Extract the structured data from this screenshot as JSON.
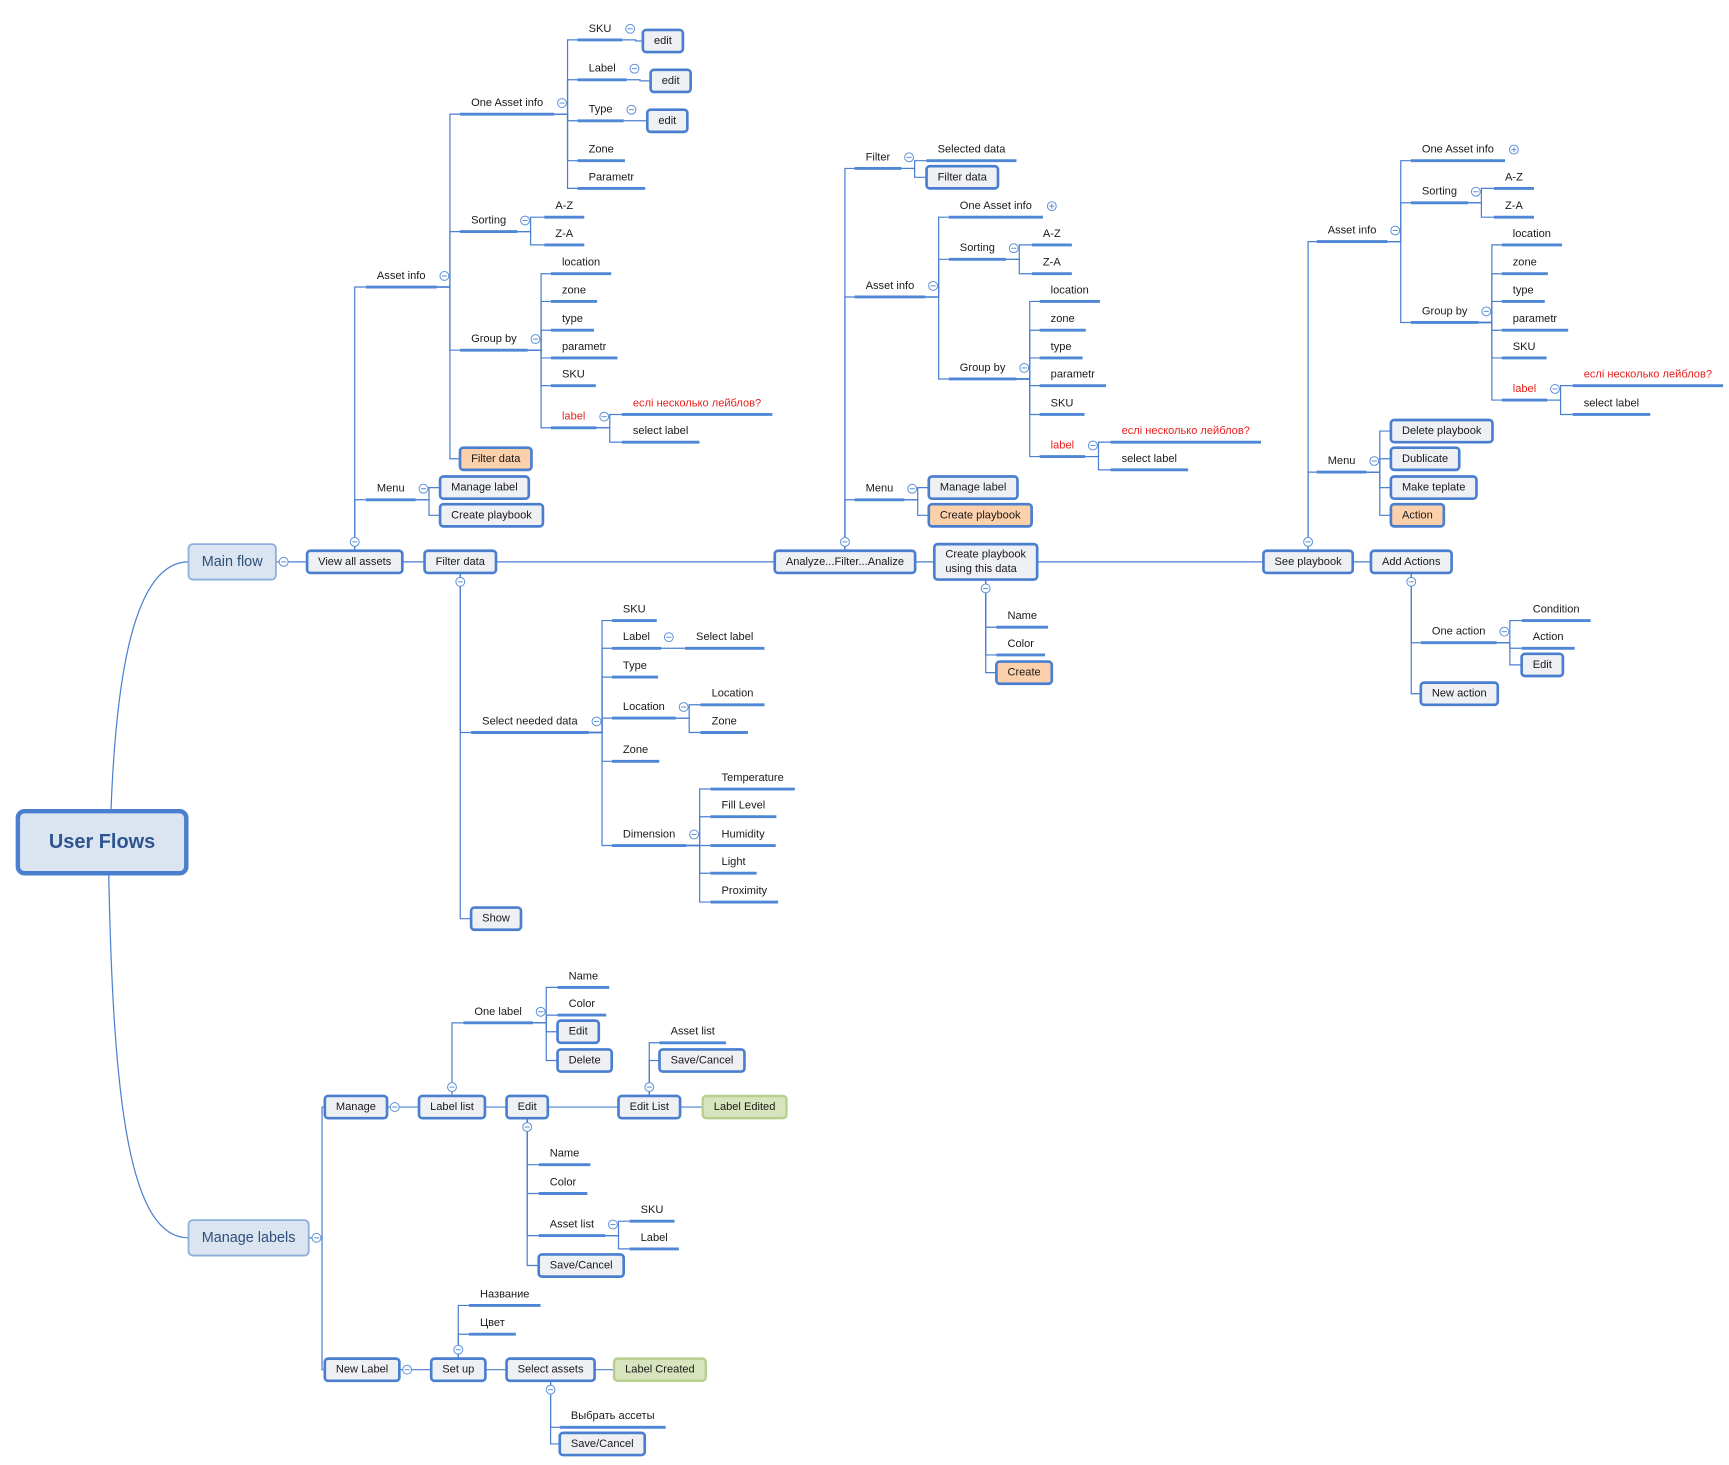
{
  "title": "User Flows",
  "colors": {
    "line": "#4a7fd0",
    "box_fill": "#eef0f3",
    "highlight_orange": "#fcd0aa",
    "done_green": "#d7e4bd",
    "main_fill": "#dbe5f1",
    "warning_text": "#e8201e"
  },
  "nodes": {
    "root": "User Flows",
    "main_flow": "Main flow",
    "manage_labels": "Manage labels",
    "view_all": "View all assets",
    "filter_data": "Filter data",
    "analyze": "Analyze...Filter...Analize",
    "create_pb_data": [
      "Create playbook",
      "using this data"
    ],
    "see_pb": "See playbook",
    "add_actions": "Add Actions",
    "a1_asset_info": "Asset info",
    "a1_menu": "Menu",
    "a1_one_asset": "One Asset info",
    "a1_sorting": "Sorting",
    "a1_group": "Group by",
    "a1_filter": "Filter data",
    "a1_sku": "SKU",
    "a1_label": "Label",
    "a1_type": "Type",
    "a1_zone": "Zone",
    "a1_param": "Parametr",
    "a1_sku_edit": "edit",
    "a1_label_edit": "edit",
    "a1_type_edit": "edit",
    "a1_az": "A-Z",
    "a1_za": "Z-A",
    "a1_g_location": "location",
    "a1_g_zone": "zone",
    "a1_g_type": "type",
    "a1_g_param": "parametr",
    "a1_g_sku": "SKU",
    "a1_g_label": "label",
    "a1_g_q": "еслі несколько лейблов?",
    "a1_g_select": "select label",
    "a1_manage_label": "Manage label",
    "a1_create_pb": "Create playbook",
    "f_select": "Select needed data",
    "f_show": "Show",
    "f_sku": "SKU",
    "f_label": "Label",
    "f_type": "Type",
    "f_location": "Location",
    "f_zone": "Zone",
    "f_dimension": "Dimension",
    "f_select_label": "Select label",
    "f_loc_location": "Location",
    "f_loc_zone": "Zone",
    "f_temp": "Temperature",
    "f_fill": "Fill Level",
    "f_hum": "Humidity",
    "f_light": "Light",
    "f_prox": "Proximity",
    "b_filter": "Filter",
    "b_asset_info": "Asset info",
    "b_menu": "Menu",
    "b_selected": "Selected data",
    "b_filter_data": "Filter data",
    "b_one_asset": "One Asset info",
    "b_sorting": "Sorting",
    "b_group": "Group by",
    "b_az": "A-Z",
    "b_za": "Z-A",
    "b_g_location": "location",
    "b_g_zone": "zone",
    "b_g_type": "type",
    "b_g_param": "parametr",
    "b_g_sku": "SKU",
    "b_g_label": "label",
    "b_g_q": "еслі несколько лейблов?",
    "b_g_select": "select label",
    "b_manage_label": "Manage label",
    "b_create_pb": "Create playbook",
    "c_name": "Name",
    "c_color": "Color",
    "c_create": "Create",
    "s_asset_info": "Asset info",
    "s_menu": "Menu",
    "s_one_asset": "One Asset info",
    "s_sorting": "Sorting",
    "s_group": "Group by",
    "s_az": "A-Z",
    "s_za": "Z-A",
    "s_g_location": "location",
    "s_g_zone": "zone",
    "s_g_type": "type",
    "s_g_param": "parametr",
    "s_g_sku": "SKU",
    "s_g_label": "label",
    "s_g_q": "еслі несколько лейблов?",
    "s_g_select": "select label",
    "s_delete": "Delete playbook",
    "s_dublicate": "Dublicate",
    "s_template": "Make teplate",
    "s_action": "Action",
    "d_one_action": "One action",
    "d_new_action": "New action",
    "d_condition": "Condition",
    "d_action": "Action",
    "d_edit": "Edit",
    "m_manage": "Manage",
    "m_new_label": "New Label",
    "m_label_list": "Label list",
    "m_edit": "Edit",
    "m_edit_list": "Edit List",
    "m_label_edited": "Label Edited",
    "m_one_label": "One label",
    "m_ol_name": "Name",
    "m_ol_color": "Color",
    "m_ol_edit": "Edit",
    "m_ol_delete": "Delete",
    "m_el_asset_list": "Asset list",
    "m_el_save": "Save/Cancel",
    "m_e_name": "Name",
    "m_e_color": "Color",
    "m_e_asset_list": "Asset list",
    "m_e_save": "Save/Cancel",
    "m_e_sku": "SKU",
    "m_e_label": "Label",
    "n_setup": "Set up",
    "n_select_assets": "Select assets",
    "n_label_created": "Label Created",
    "n_name": "Название",
    "n_color": "Цвет",
    "n_choose": "Выбрать ассеты",
    "n_save": "Save/Cancel"
  }
}
